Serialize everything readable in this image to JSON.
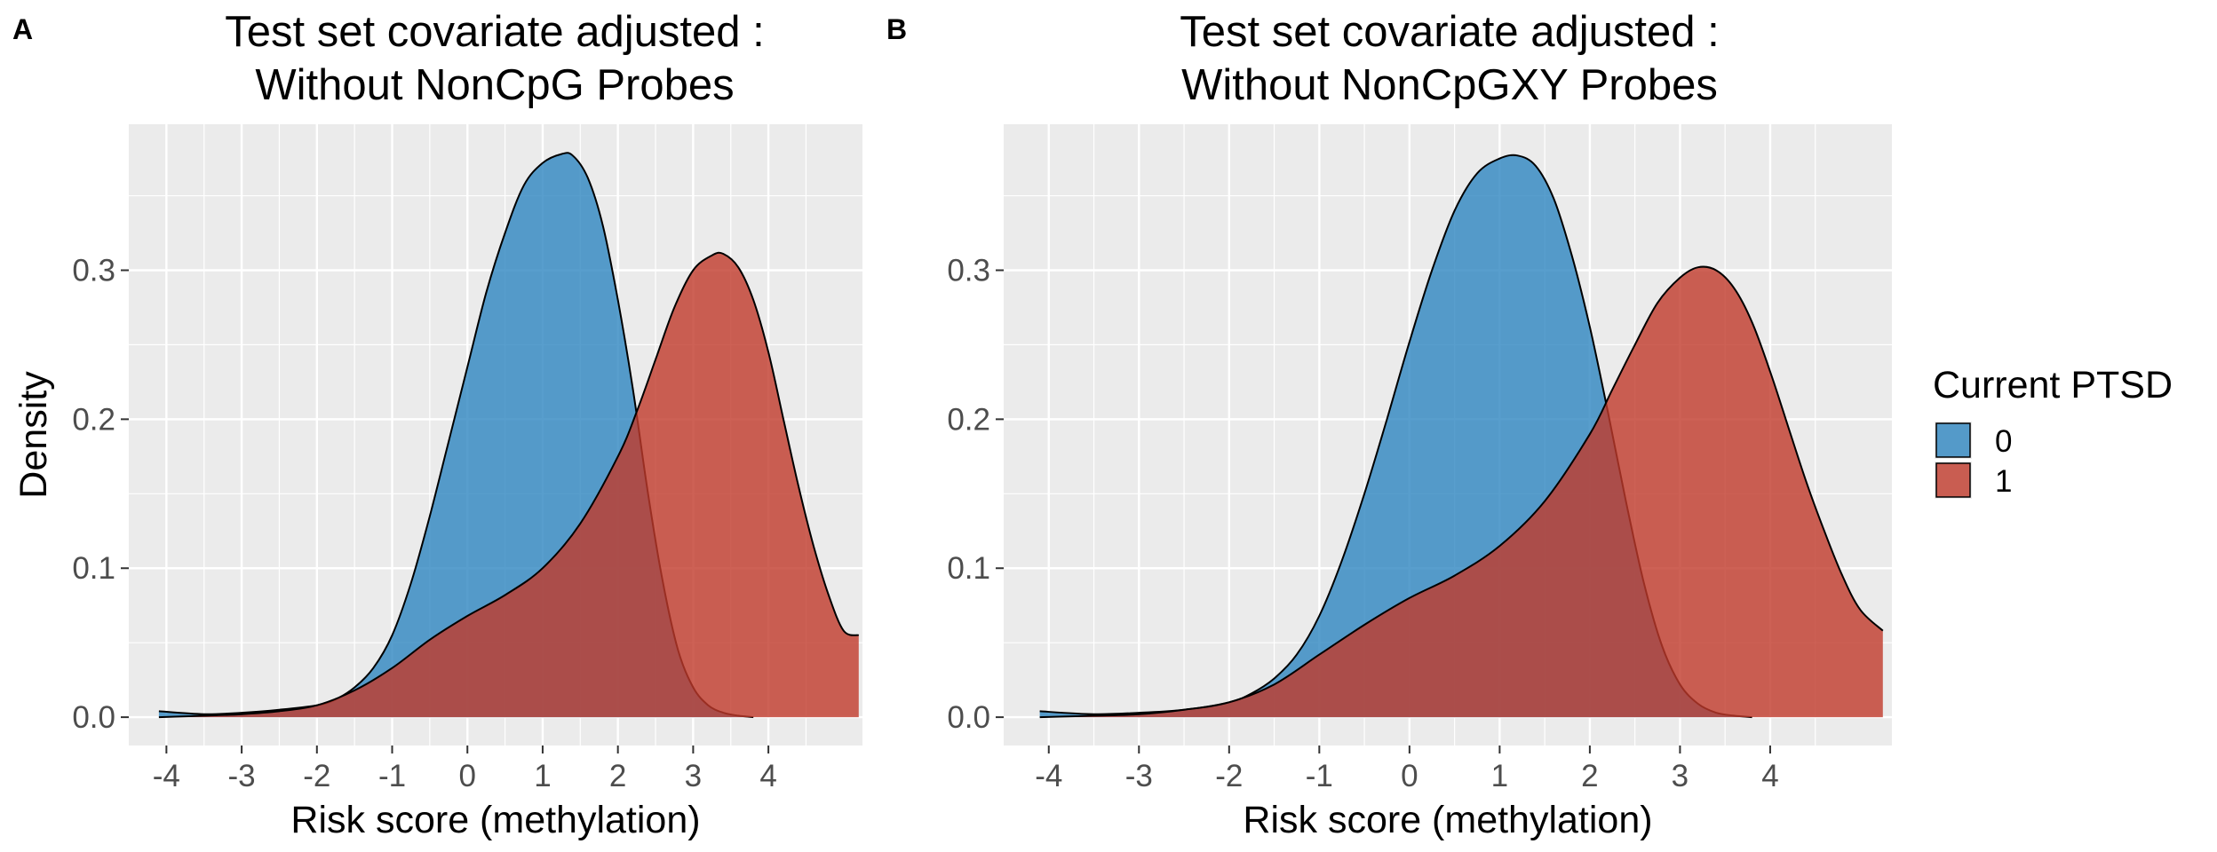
{
  "legend": {
    "title": "Current PTSD",
    "placement": "right",
    "entries": [
      {
        "label": "0",
        "color": "#2E86C1"
      },
      {
        "label": "1",
        "color": "#C0392B"
      }
    ]
  },
  "chart_data": [
    {
      "type": "area",
      "panel_label": "A",
      "title": "Test set covariate adjusted :",
      "subtitle": "Without NonCpG Probes",
      "xlabel": "Risk score (methylation)",
      "ylabel": "Density",
      "xlim": [
        -4.5,
        5.25
      ],
      "ylim": [
        -0.019,
        0.398
      ],
      "x_ticks": [
        -4,
        -3,
        -2,
        -1,
        0,
        1,
        2,
        3,
        4
      ],
      "y_ticks": [
        0.0,
        0.1,
        0.2,
        0.3
      ],
      "y_tick_labels": [
        "0.0",
        "0.1",
        "0.2",
        "0.3"
      ],
      "grid": true,
      "series": [
        {
          "name": "0",
          "color": "#2E86C1",
          "x": [
            -4.1,
            -3.5,
            -3.0,
            -2.5,
            -2.0,
            -1.75,
            -1.5,
            -1.25,
            -1.0,
            -0.75,
            -0.5,
            -0.25,
            0.0,
            0.25,
            0.5,
            0.75,
            1.0,
            1.25,
            1.4,
            1.6,
            1.8,
            2.0,
            2.2,
            2.4,
            2.6,
            2.8,
            3.0,
            3.2,
            3.4,
            3.6,
            3.8
          ],
          "y": [
            0.004,
            0.002,
            0.003,
            0.005,
            0.008,
            0.012,
            0.02,
            0.033,
            0.055,
            0.09,
            0.135,
            0.185,
            0.235,
            0.285,
            0.325,
            0.357,
            0.372,
            0.378,
            0.377,
            0.362,
            0.33,
            0.28,
            0.22,
            0.15,
            0.09,
            0.045,
            0.02,
            0.008,
            0.003,
            0.001,
            0.0
          ]
        },
        {
          "name": "1",
          "color": "#C0392B",
          "x": [
            -4.1,
            -3.5,
            -3.0,
            -2.5,
            -2.0,
            -1.5,
            -1.0,
            -0.5,
            0.0,
            0.5,
            1.0,
            1.5,
            2.0,
            2.25,
            2.5,
            2.75,
            3.0,
            3.25,
            3.4,
            3.6,
            3.8,
            4.0,
            4.2,
            4.4,
            4.6,
            4.8,
            5.0,
            5.2
          ],
          "y": [
            0.0,
            0.001,
            0.002,
            0.004,
            0.008,
            0.018,
            0.033,
            0.052,
            0.068,
            0.082,
            0.1,
            0.13,
            0.175,
            0.205,
            0.24,
            0.275,
            0.3,
            0.31,
            0.311,
            0.302,
            0.28,
            0.245,
            0.2,
            0.155,
            0.115,
            0.082,
            0.058,
            0.055
          ]
        }
      ]
    },
    {
      "type": "area",
      "panel_label": "B",
      "title": "Test set covariate adjusted :",
      "subtitle": "Without NonCpGXY Probes",
      "xlabel": "Risk score (methylation)",
      "ylabel": "",
      "xlim": [
        -4.5,
        5.35
      ],
      "ylim": [
        -0.019,
        0.398
      ],
      "x_ticks": [
        -4,
        -3,
        -2,
        -1,
        0,
        1,
        2,
        3,
        4
      ],
      "y_ticks": [
        0.0,
        0.1,
        0.2,
        0.3
      ],
      "y_tick_labels": [
        "0.0",
        "0.1",
        "0.2",
        "0.3"
      ],
      "grid": true,
      "series": [
        {
          "name": "0",
          "color": "#2E86C1",
          "x": [
            -4.1,
            -3.5,
            -3.0,
            -2.5,
            -2.0,
            -1.75,
            -1.5,
            -1.25,
            -1.0,
            -0.75,
            -0.5,
            -0.25,
            0.0,
            0.25,
            0.5,
            0.75,
            1.0,
            1.2,
            1.4,
            1.6,
            1.8,
            2.0,
            2.2,
            2.4,
            2.6,
            2.8,
            3.0,
            3.2,
            3.4,
            3.6,
            3.8
          ],
          "y": [
            0.004,
            0.002,
            0.003,
            0.005,
            0.01,
            0.016,
            0.026,
            0.042,
            0.068,
            0.105,
            0.15,
            0.2,
            0.252,
            0.3,
            0.34,
            0.365,
            0.375,
            0.377,
            0.37,
            0.348,
            0.31,
            0.262,
            0.205,
            0.145,
            0.09,
            0.048,
            0.022,
            0.009,
            0.003,
            0.001,
            0.0
          ]
        },
        {
          "name": "1",
          "color": "#C0392B",
          "x": [
            -4.1,
            -3.5,
            -3.0,
            -2.5,
            -2.0,
            -1.5,
            -1.0,
            -0.5,
            0.0,
            0.5,
            1.0,
            1.5,
            2.0,
            2.25,
            2.5,
            2.75,
            3.0,
            3.2,
            3.4,
            3.6,
            3.8,
            4.0,
            4.2,
            4.4,
            4.6,
            4.8,
            5.0,
            5.25
          ],
          "y": [
            0.0,
            0.001,
            0.002,
            0.005,
            0.01,
            0.022,
            0.042,
            0.062,
            0.08,
            0.095,
            0.115,
            0.145,
            0.19,
            0.22,
            0.25,
            0.278,
            0.295,
            0.302,
            0.3,
            0.288,
            0.265,
            0.232,
            0.195,
            0.158,
            0.125,
            0.095,
            0.072,
            0.058
          ]
        }
      ]
    }
  ]
}
